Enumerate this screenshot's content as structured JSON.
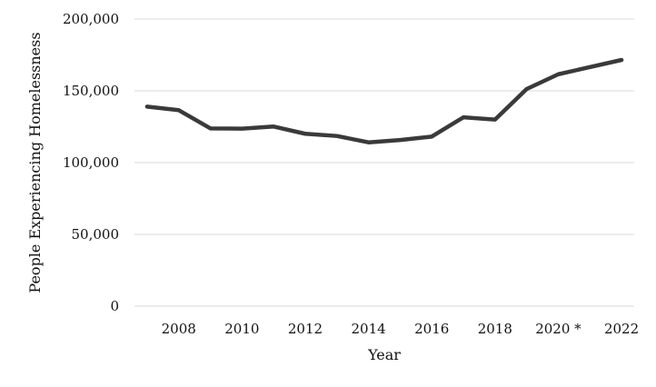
{
  "chart_data": {
    "type": "line",
    "xlabel": "Year",
    "ylabel": "People Experiencing Homelessness",
    "ylim": [
      0,
      200000
    ],
    "yticks": [
      0,
      50000,
      100000,
      150000,
      200000
    ],
    "ytick_labels": [
      "0",
      "50,000",
      "100,000",
      "150,000",
      "200,000"
    ],
    "xlim": [
      2006.6,
      2022.4
    ],
    "xticks": [
      2008,
      2010,
      2012,
      2014,
      2016,
      2018,
      2020,
      2022
    ],
    "xtick_labels": [
      "2008",
      "2010",
      "2012",
      "2014",
      "2016",
      "2018",
      "2020 *",
      "2022"
    ],
    "grid": true,
    "legend": "none",
    "series": [
      {
        "color": "#3a3a3a",
        "x": [
          2007,
          2008,
          2009,
          2010,
          2011,
          2012,
          2013,
          2014,
          2015,
          2016,
          2017,
          2018,
          2019,
          2020,
          2022
        ],
        "values": [
          138986,
          136531,
          123833,
          123678,
          125128,
          120098,
          118552,
          114105,
          115738,
          118142,
          131532,
          129972,
          151278,
          161548,
          171521
        ]
      }
    ]
  }
}
